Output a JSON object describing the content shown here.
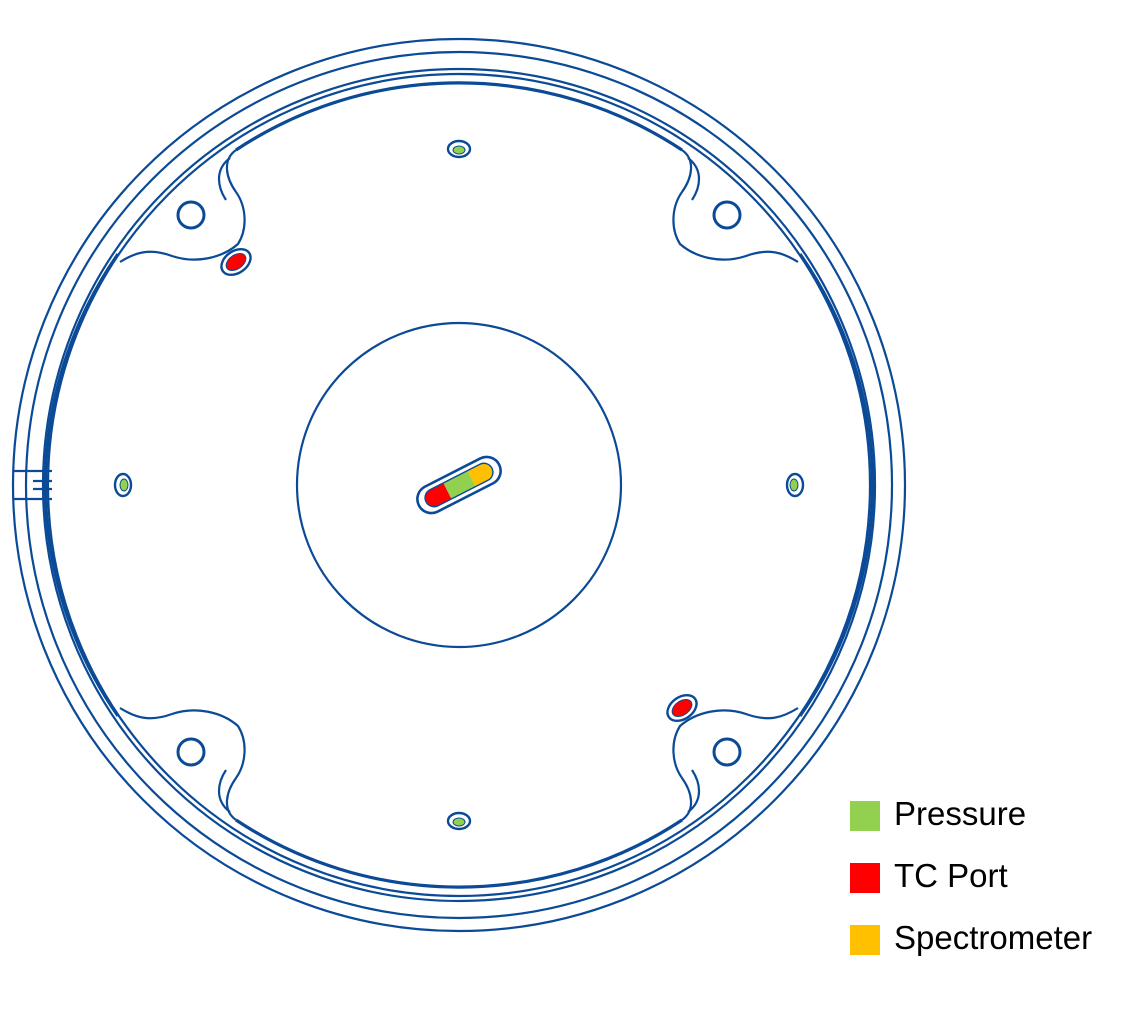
{
  "colors": {
    "outline": "#0b4a96",
    "pressure": "#92d050",
    "tc_port": "#ff0000",
    "spectrometer": "#ffc000",
    "background": "#ffffff"
  },
  "legend": {
    "items": [
      {
        "key": "pressure",
        "label": "Pressure",
        "color": "#92d050"
      },
      {
        "key": "tc_port",
        "label": "TC Port",
        "color": "#ff0000"
      },
      {
        "key": "spectrometer",
        "label": "Spectrometer",
        "color": "#ffc000"
      }
    ]
  },
  "ports": {
    "pressure_count": 4,
    "tc_port_count": 2,
    "center_port_segments": [
      "tc_port",
      "pressure",
      "spectrometer"
    ]
  }
}
